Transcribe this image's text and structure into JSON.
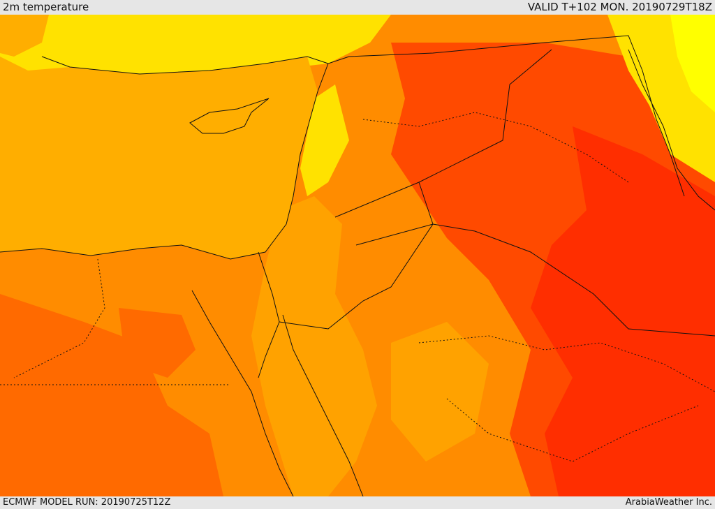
{
  "header": {
    "title": "2m temperature",
    "valid_time": "VALID T+102 MON. 20190729T18Z"
  },
  "footer": {
    "model_run": "ECMWF MODEL RUN: 20190725T12Z",
    "credit": "ArabiaWeather Inc."
  },
  "map": {
    "region": "Eastern Mediterranean and Middle East",
    "field": "2m temperature",
    "colors": {
      "sea": "#ffae00",
      "yellow": "#ffe200",
      "light_yellow": "#ffff00",
      "orange_light": "#ffa200",
      "orange": "#ff8c00",
      "orange_dark": "#ff6a00",
      "red_orange": "#ff4a00",
      "red": "#ff2e00"
    }
  }
}
